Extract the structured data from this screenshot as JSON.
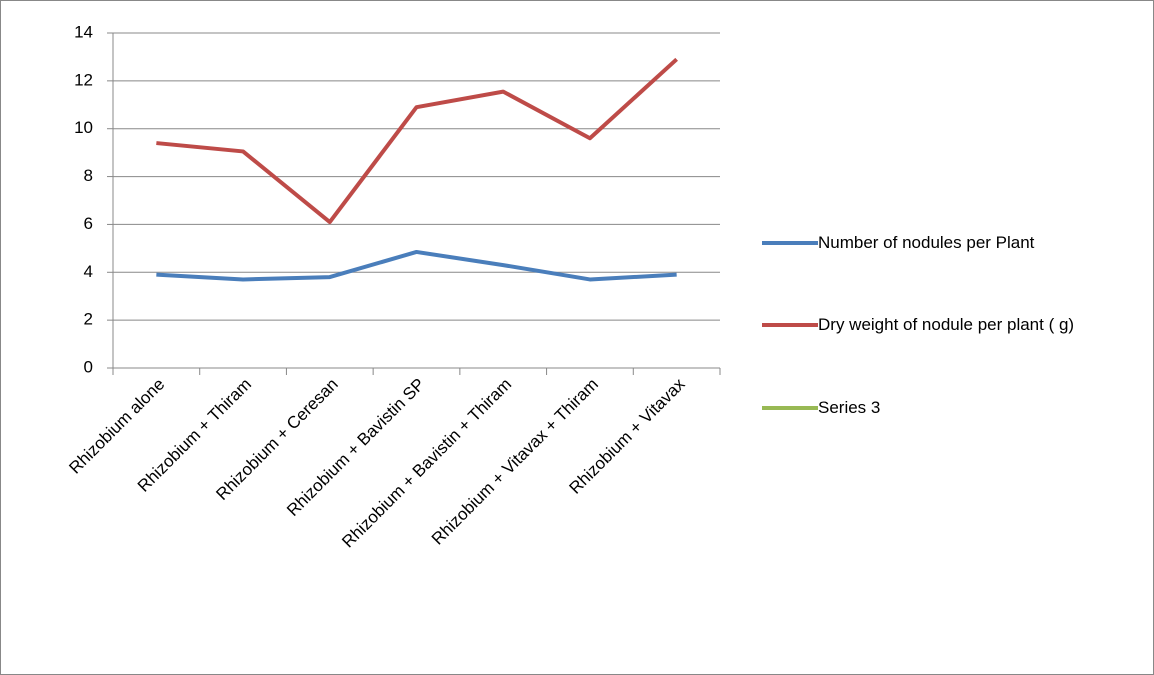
{
  "chart_data": {
    "type": "line",
    "categories": [
      "Rhizobium alone",
      "Rhizobium + Thiram",
      "Rhizobium + Ceresan",
      "Rhizobium + Bavistin SP",
      "Rhizobium + Bavistin + Thiram",
      "Rhizobium + Vitavax + Thiram",
      "Rhizobium + Vitavax"
    ],
    "series": [
      {
        "name": "Number of nodules per Plant",
        "color": "#4a7ebb",
        "values": [
          3.9,
          3.7,
          3.8,
          4.85,
          4.3,
          3.7,
          3.9
        ]
      },
      {
        "name": "Dry weight of nodule per plant ( g)",
        "color": "#be4b48",
        "values": [
          9.4,
          9.05,
          6.1,
          10.9,
          11.55,
          9.6,
          12.9
        ]
      },
      {
        "name": "Series 3",
        "color": "#98b954",
        "values": [
          null,
          null,
          null,
          null,
          null,
          null,
          null
        ]
      }
    ],
    "ylim": [
      0,
      14
    ],
    "yticks": [
      0,
      2,
      4,
      6,
      8,
      10,
      12,
      14
    ],
    "grid": true,
    "legend": "right"
  }
}
